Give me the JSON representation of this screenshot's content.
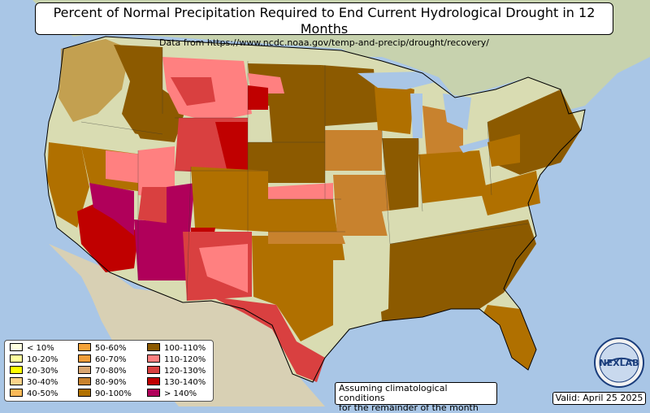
{
  "title": "Percent of Normal Precipitation Required to End Current Hydrological Drought in 12 Months",
  "subtitle": "Data from https://www.ncdc.noaa.gov/temp-and-precip/drought/recovery/",
  "legend": {
    "items": [
      {
        "label": "< 10%",
        "color": "#ffffe0"
      },
      {
        "label": "10-20%",
        "color": "#ffff9e"
      },
      {
        "label": "20-30%",
        "color": "#ffff00"
      },
      {
        "label": "30-40%",
        "color": "#fbd38a"
      },
      {
        "label": "40-50%",
        "color": "#fbb958"
      },
      {
        "label": "50-60%",
        "color": "#f5a33a"
      },
      {
        "label": "60-70%",
        "color": "#ef9d3a"
      },
      {
        "label": "70-80%",
        "color": "#d9a670"
      },
      {
        "label": "80-90%",
        "color": "#c8822e"
      },
      {
        "label": "90-100%",
        "color": "#b07000"
      },
      {
        "label": "100-110%",
        "color": "#8c5a00"
      },
      {
        "label": "110-120%",
        "color": "#ff8080"
      },
      {
        "label": "120-130%",
        "color": "#d94040"
      },
      {
        "label": "130-140%",
        "color": "#c00000"
      },
      {
        "label": "> 140%",
        "color": "#b0005a"
      }
    ]
  },
  "note": {
    "line1": "Assuming climatological conditions",
    "line2": "for the remainder of the month"
  },
  "valid": "Valid: April 25 2025",
  "logo_text": "NEXLAB",
  "colors": {
    "ocean": "#a9c6e6",
    "land": "#d9dcb2",
    "canada": "#c8d3b0",
    "mexico": "#d8d2b8"
  }
}
